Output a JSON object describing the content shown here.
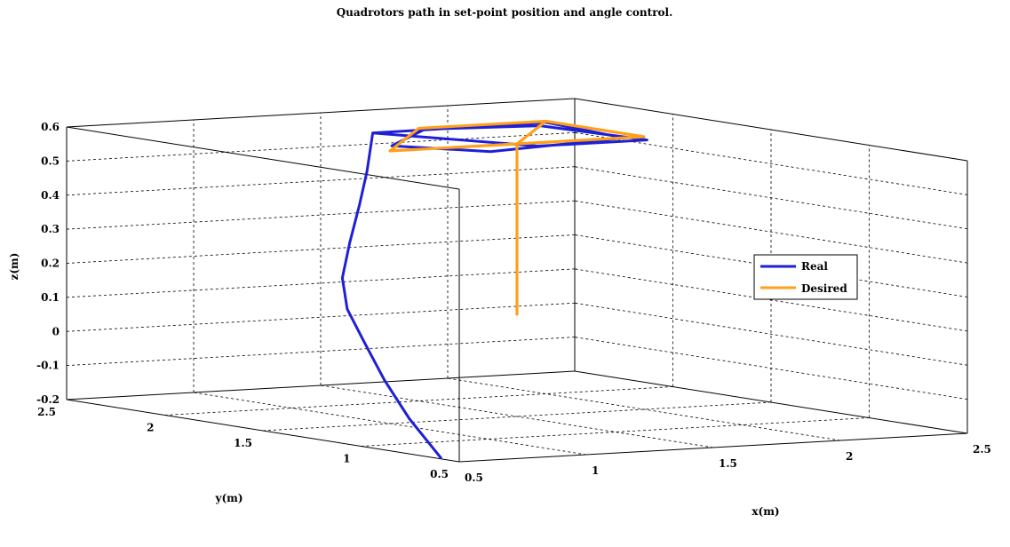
{
  "chart_data": {
    "type": "line3d",
    "title": "Quadrotors path in set-point position and angle control.",
    "xlabel": "x(m)",
    "ylabel": "y(m)",
    "zlabel": "z(m)",
    "xlim": [
      0.5,
      2.5
    ],
    "ylim": [
      0.5,
      2.5
    ],
    "zlim": [
      -0.2,
      0.6
    ],
    "x_ticks": [
      "0.5",
      "1",
      "1.5",
      "2",
      "2.5"
    ],
    "y_ticks": [
      "0.5",
      "1",
      "1.5",
      "2",
      "2.5"
    ],
    "z_ticks": [
      "-0.2",
      "-0.1",
      "0",
      "0.1",
      "0.2",
      "0.3",
      "0.4",
      "0.5",
      "0.6"
    ],
    "grid": true,
    "legend_position": "right",
    "series": [
      {
        "name": "Real",
        "color": "#1f1fd6",
        "points": [
          [
            0.52,
            0.62,
            -0.2
          ],
          [
            0.52,
            0.78,
            -0.1
          ],
          [
            0.53,
            0.92,
            0.0
          ],
          [
            0.55,
            1.05,
            0.1
          ],
          [
            0.6,
            1.2,
            0.18
          ],
          [
            0.72,
            1.38,
            0.25
          ],
          [
            0.88,
            1.55,
            0.33
          ],
          [
            1.05,
            1.72,
            0.42
          ],
          [
            1.18,
            1.85,
            0.5
          ],
          [
            1.28,
            1.95,
            0.6
          ],
          [
            1.98,
            1.97,
            0.6
          ],
          [
            1.92,
            1.5,
            0.6
          ],
          [
            1.28,
            1.35,
            0.6
          ],
          [
            1.1,
            1.62,
            0.6
          ],
          [
            1.5,
            1.97,
            0.6
          ],
          [
            1.9,
            1.9,
            0.6
          ],
          [
            1.95,
            1.42,
            0.6
          ],
          [
            1.52,
            1.42,
            0.6
          ],
          [
            1.28,
            1.95,
            0.6
          ]
        ]
      },
      {
        "name": "Desired",
        "color": "#ff9f1a",
        "points": [
          [
            1.5,
            1.5,
            0.1
          ],
          [
            1.5,
            1.5,
            0.6
          ],
          [
            2.0,
            2.0,
            0.6
          ],
          [
            2.0,
            1.5,
            0.6
          ],
          [
            1.0,
            1.5,
            0.6
          ],
          [
            1.5,
            2.0,
            0.6
          ],
          [
            2.0,
            2.0,
            0.6
          ]
        ]
      }
    ]
  }
}
